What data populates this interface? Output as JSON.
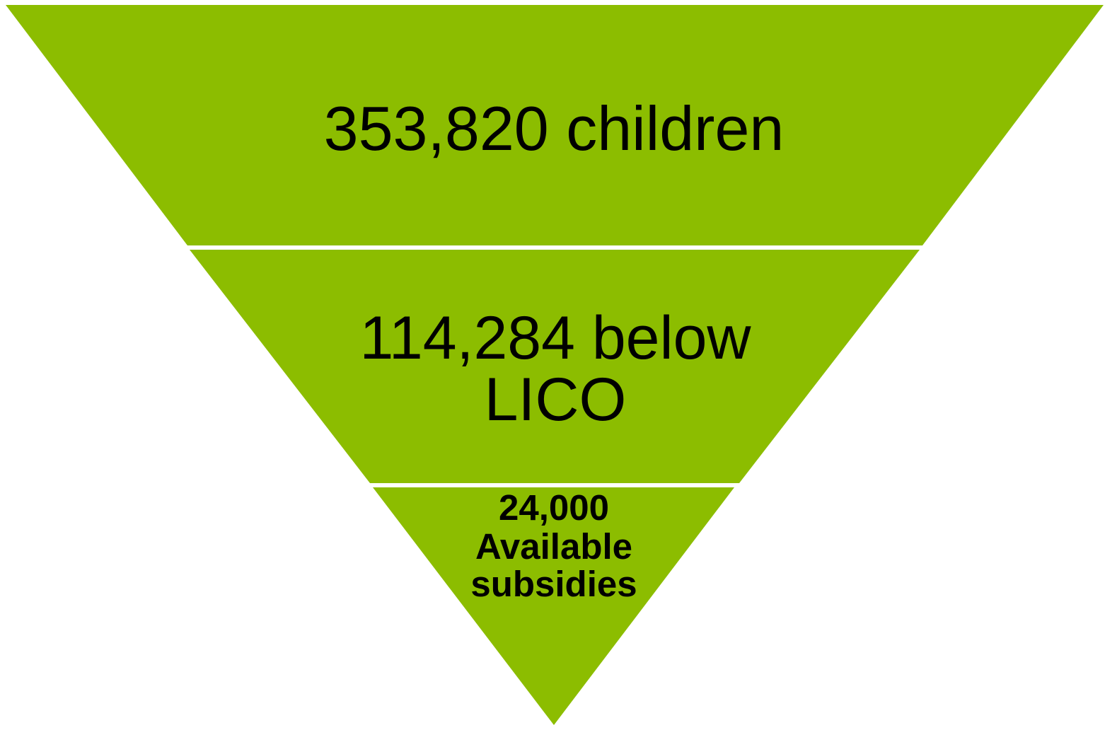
{
  "levels": [
    {
      "lines": [
        "353,820 children"
      ]
    },
    {
      "lines": [
        "114,284 below",
        "LICO"
      ]
    },
    {
      "lines": [
        "24,000",
        "Available",
        "subsidies"
      ]
    }
  ]
}
